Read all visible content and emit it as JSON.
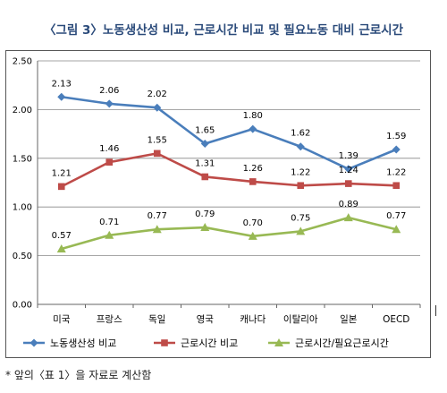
{
  "title": "〈그림 3〉노동생산성 비교, 근로시간 비교 및 필요노동 대비 근로시간",
  "footnote": "* 앞의〈표 1〉을 자료로 계산함",
  "chart_data": {
    "type": "line",
    "categories": [
      "미국",
      "프랑스",
      "독일",
      "영국",
      "캐나다",
      "이탈리아",
      "일본",
      "OECD"
    ],
    "ylim": [
      0,
      2.5
    ],
    "yticks": [
      "0.00",
      "0.50",
      "1.00",
      "1.50",
      "2.00",
      "2.50"
    ],
    "grid": true,
    "legend_position": "bottom",
    "series": [
      {
        "name": "노동생산성 비교",
        "color": "#4a7ebb",
        "marker": "diamond",
        "values": [
          2.13,
          2.06,
          2.02,
          1.65,
          1.8,
          1.62,
          1.39,
          1.59
        ],
        "labels": [
          "2.13",
          "2.06",
          "2.02",
          "1.65",
          "1.80",
          "1.62",
          "1.39",
          "1.59"
        ]
      },
      {
        "name": "근로시간 비교",
        "color": "#be4b48",
        "marker": "square",
        "values": [
          1.21,
          1.46,
          1.55,
          1.31,
          1.26,
          1.22,
          1.24,
          1.22
        ],
        "labels": [
          "1.21",
          "1.46",
          "1.55",
          "1.31",
          "1.26",
          "1.22",
          "1.24",
          "1.22"
        ]
      },
      {
        "name": "근로시간/필요근로시간",
        "color": "#98b954",
        "marker": "triangle",
        "values": [
          0.57,
          0.71,
          0.77,
          0.79,
          0.7,
          0.75,
          0.89,
          0.77
        ],
        "labels": [
          "0.57",
          "0.71",
          "0.77",
          "0.79",
          "0.70",
          "0.75",
          "0.89",
          "0.77"
        ]
      }
    ]
  }
}
